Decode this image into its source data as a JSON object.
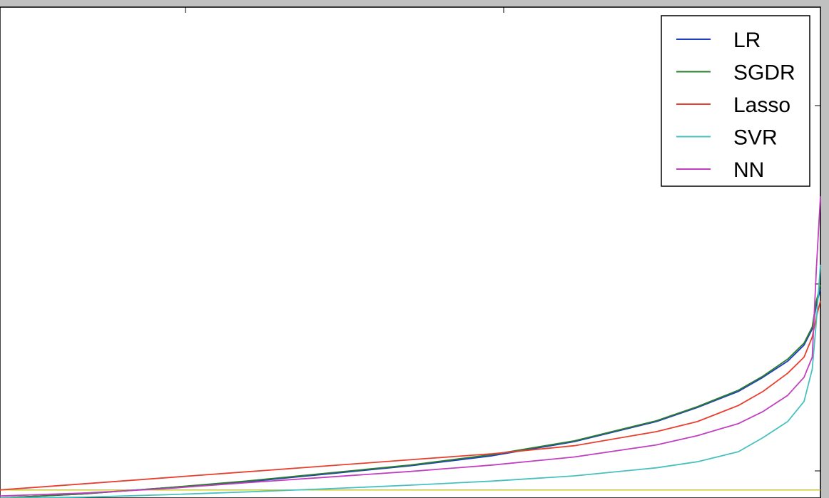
{
  "chart_data": {
    "type": "line",
    "title": "",
    "xlabel": "",
    "ylabel": "",
    "xlim": [
      0,
      1
    ],
    "ylim": [
      -0.02,
      1.2
    ],
    "grid": false,
    "legend_position": "top-right",
    "x": [
      0.0,
      0.1,
      0.2,
      0.3,
      0.4,
      0.5,
      0.6,
      0.7,
      0.8,
      0.85,
      0.9,
      0.93,
      0.96,
      0.98,
      0.99,
      0.995,
      1.0
    ],
    "series": [
      {
        "name": "LR",
        "color": "#1f3fbf",
        "values": [
          -0.02,
          -0.01,
          0.005,
          0.02,
          0.04,
          0.06,
          0.085,
          0.12,
          0.17,
          0.205,
          0.245,
          0.28,
          0.32,
          0.36,
          0.4,
          0.46,
          0.5
        ]
      },
      {
        "name": "SGDR",
        "color": "#2e7d2e",
        "values": [
          -0.02,
          -0.01,
          0.005,
          0.022,
          0.042,
          0.062,
          0.088,
          0.122,
          0.172,
          0.207,
          0.248,
          0.283,
          0.325,
          0.365,
          0.405,
          0.47,
          0.51
        ]
      },
      {
        "name": "Lasso",
        "color": "#e8402e",
        "values": [
          0.0,
          0.015,
          0.03,
          0.045,
          0.06,
          0.075,
          0.09,
          0.11,
          0.145,
          0.17,
          0.21,
          0.245,
          0.29,
          0.33,
          0.38,
          0.43,
          0.47
        ]
      },
      {
        "name": "SVR",
        "color": "#48c0c0",
        "values": [
          -0.02,
          -0.018,
          -0.012,
          -0.005,
          0.003,
          0.012,
          0.022,
          0.035,
          0.055,
          0.07,
          0.095,
          0.13,
          0.17,
          0.22,
          0.3,
          0.42,
          0.56
        ]
      },
      {
        "name": "NN",
        "color": "#c040c0",
        "values": [
          -0.015,
          -0.008,
          0.003,
          0.018,
          0.032,
          0.046,
          0.062,
          0.082,
          0.112,
          0.135,
          0.165,
          0.195,
          0.235,
          0.28,
          0.33,
          0.55,
          0.73
        ]
      }
    ],
    "baseline": {
      "color": "#c8c832",
      "value": 0.0
    },
    "legend": [
      "LR",
      "SGDR",
      "Lasso",
      "SVR",
      "NN"
    ]
  }
}
